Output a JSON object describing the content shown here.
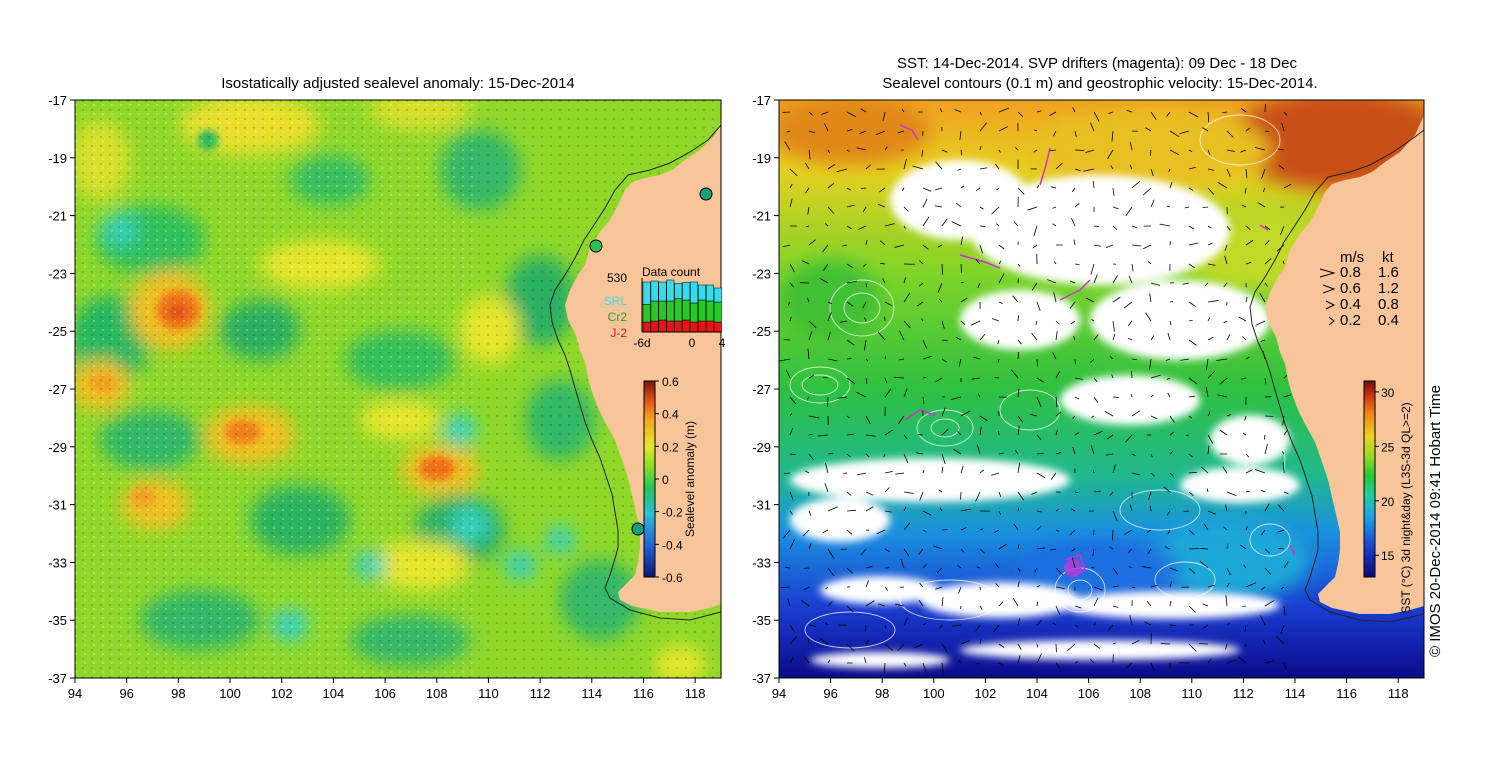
{
  "left_panel": {
    "title": "Isostatically adjusted sealevel anomaly: 15-Dec-2014",
    "x_ticks": [
      "94",
      "96",
      "98",
      "100",
      "102",
      "104",
      "106",
      "108",
      "110",
      "112",
      "114",
      "116",
      "118"
    ],
    "y_ticks": [
      "-17",
      "-19",
      "-21",
      "-23",
      "-25",
      "-27",
      "-29",
      "-31",
      "-33",
      "-35",
      "-37"
    ],
    "colorbar": {
      "label": "Sealevel anomaly (m)",
      "ticks": [
        "0.6",
        "0.4",
        "0.2",
        "0",
        "-0.2",
        "-0.4",
        "-0.6"
      ]
    },
    "data_count": {
      "title": "Data count",
      "max_label": "530",
      "legend": [
        {
          "name": "SRL",
          "color": "#33ddee"
        },
        {
          "name": "Cr2",
          "color": "#22cc22"
        },
        {
          "name": "J-2",
          "color": "#ee1111"
        }
      ],
      "x_ticks": [
        "-6d",
        "0",
        "4"
      ],
      "bars": [
        {
          "srl": 0.45,
          "cr2": 0.35,
          "j2": 0.2
        },
        {
          "srl": 0.4,
          "cr2": 0.4,
          "j2": 0.22
        },
        {
          "srl": 0.38,
          "cr2": 0.38,
          "j2": 0.24
        },
        {
          "srl": 0.42,
          "cr2": 0.4,
          "j2": 0.22
        },
        {
          "srl": 0.3,
          "cr2": 0.45,
          "j2": 0.22
        },
        {
          "srl": 0.35,
          "cr2": 0.4,
          "j2": 0.24
        },
        {
          "srl": 0.42,
          "cr2": 0.38,
          "j2": 0.2
        },
        {
          "srl": 0.3,
          "cr2": 0.42,
          "j2": 0.22
        },
        {
          "srl": 0.32,
          "cr2": 0.4,
          "j2": 0.22
        },
        {
          "srl": 0.28,
          "cr2": 0.4,
          "j2": 0.2
        }
      ]
    }
  },
  "right_panel": {
    "title_line1": "SST: 14-Dec-2014. SVP drifters (magenta): 09 Dec - 18 Dec",
    "title_line2": "Sealevel contours (0.1 m) and geostrophic velocity: 15-Dec-2014.",
    "x_ticks": [
      "94",
      "96",
      "98",
      "100",
      "102",
      "104",
      "106",
      "108",
      "110",
      "112",
      "114",
      "116",
      "118"
    ],
    "y_ticks": [
      "-17",
      "-19",
      "-21",
      "-23",
      "-25",
      "-27",
      "-29",
      "-31",
      "-33",
      "-35",
      "-37"
    ],
    "velocity_legend": {
      "header_ms": "m/s",
      "header_kt": "kt",
      "rows": [
        {
          "ms": "0.8",
          "kt": "1.6"
        },
        {
          "ms": "0.6",
          "kt": "1.2"
        },
        {
          "ms": "0.4",
          "kt": "0.8"
        },
        {
          "ms": "0.2",
          "kt": "0.4"
        }
      ]
    },
    "colorbar": {
      "label": "SST (°C) 3d night&day (L3S-3d QL>=2)",
      "ticks": [
        "30",
        "25",
        "20",
        "15"
      ]
    }
  },
  "credit": "© IMOS 20-Dec-2014 09:41 Hobart Time",
  "colors": {
    "land": "#f8c49a",
    "anomaly_ramp": [
      "#1a1a8c",
      "#1e5bd6",
      "#2bb0e0",
      "#36e0c8",
      "#22c45a",
      "#7ddc2a",
      "#e6e62a",
      "#f5a81e",
      "#e3541a",
      "#8c1a10"
    ],
    "sst_ramp": [
      "#0a0a8a",
      "#1a3cd0",
      "#1aa0e8",
      "#1ad0a0",
      "#28c830",
      "#a0d828",
      "#f0d020",
      "#f08018",
      "#c83010",
      "#7a1408"
    ]
  }
}
